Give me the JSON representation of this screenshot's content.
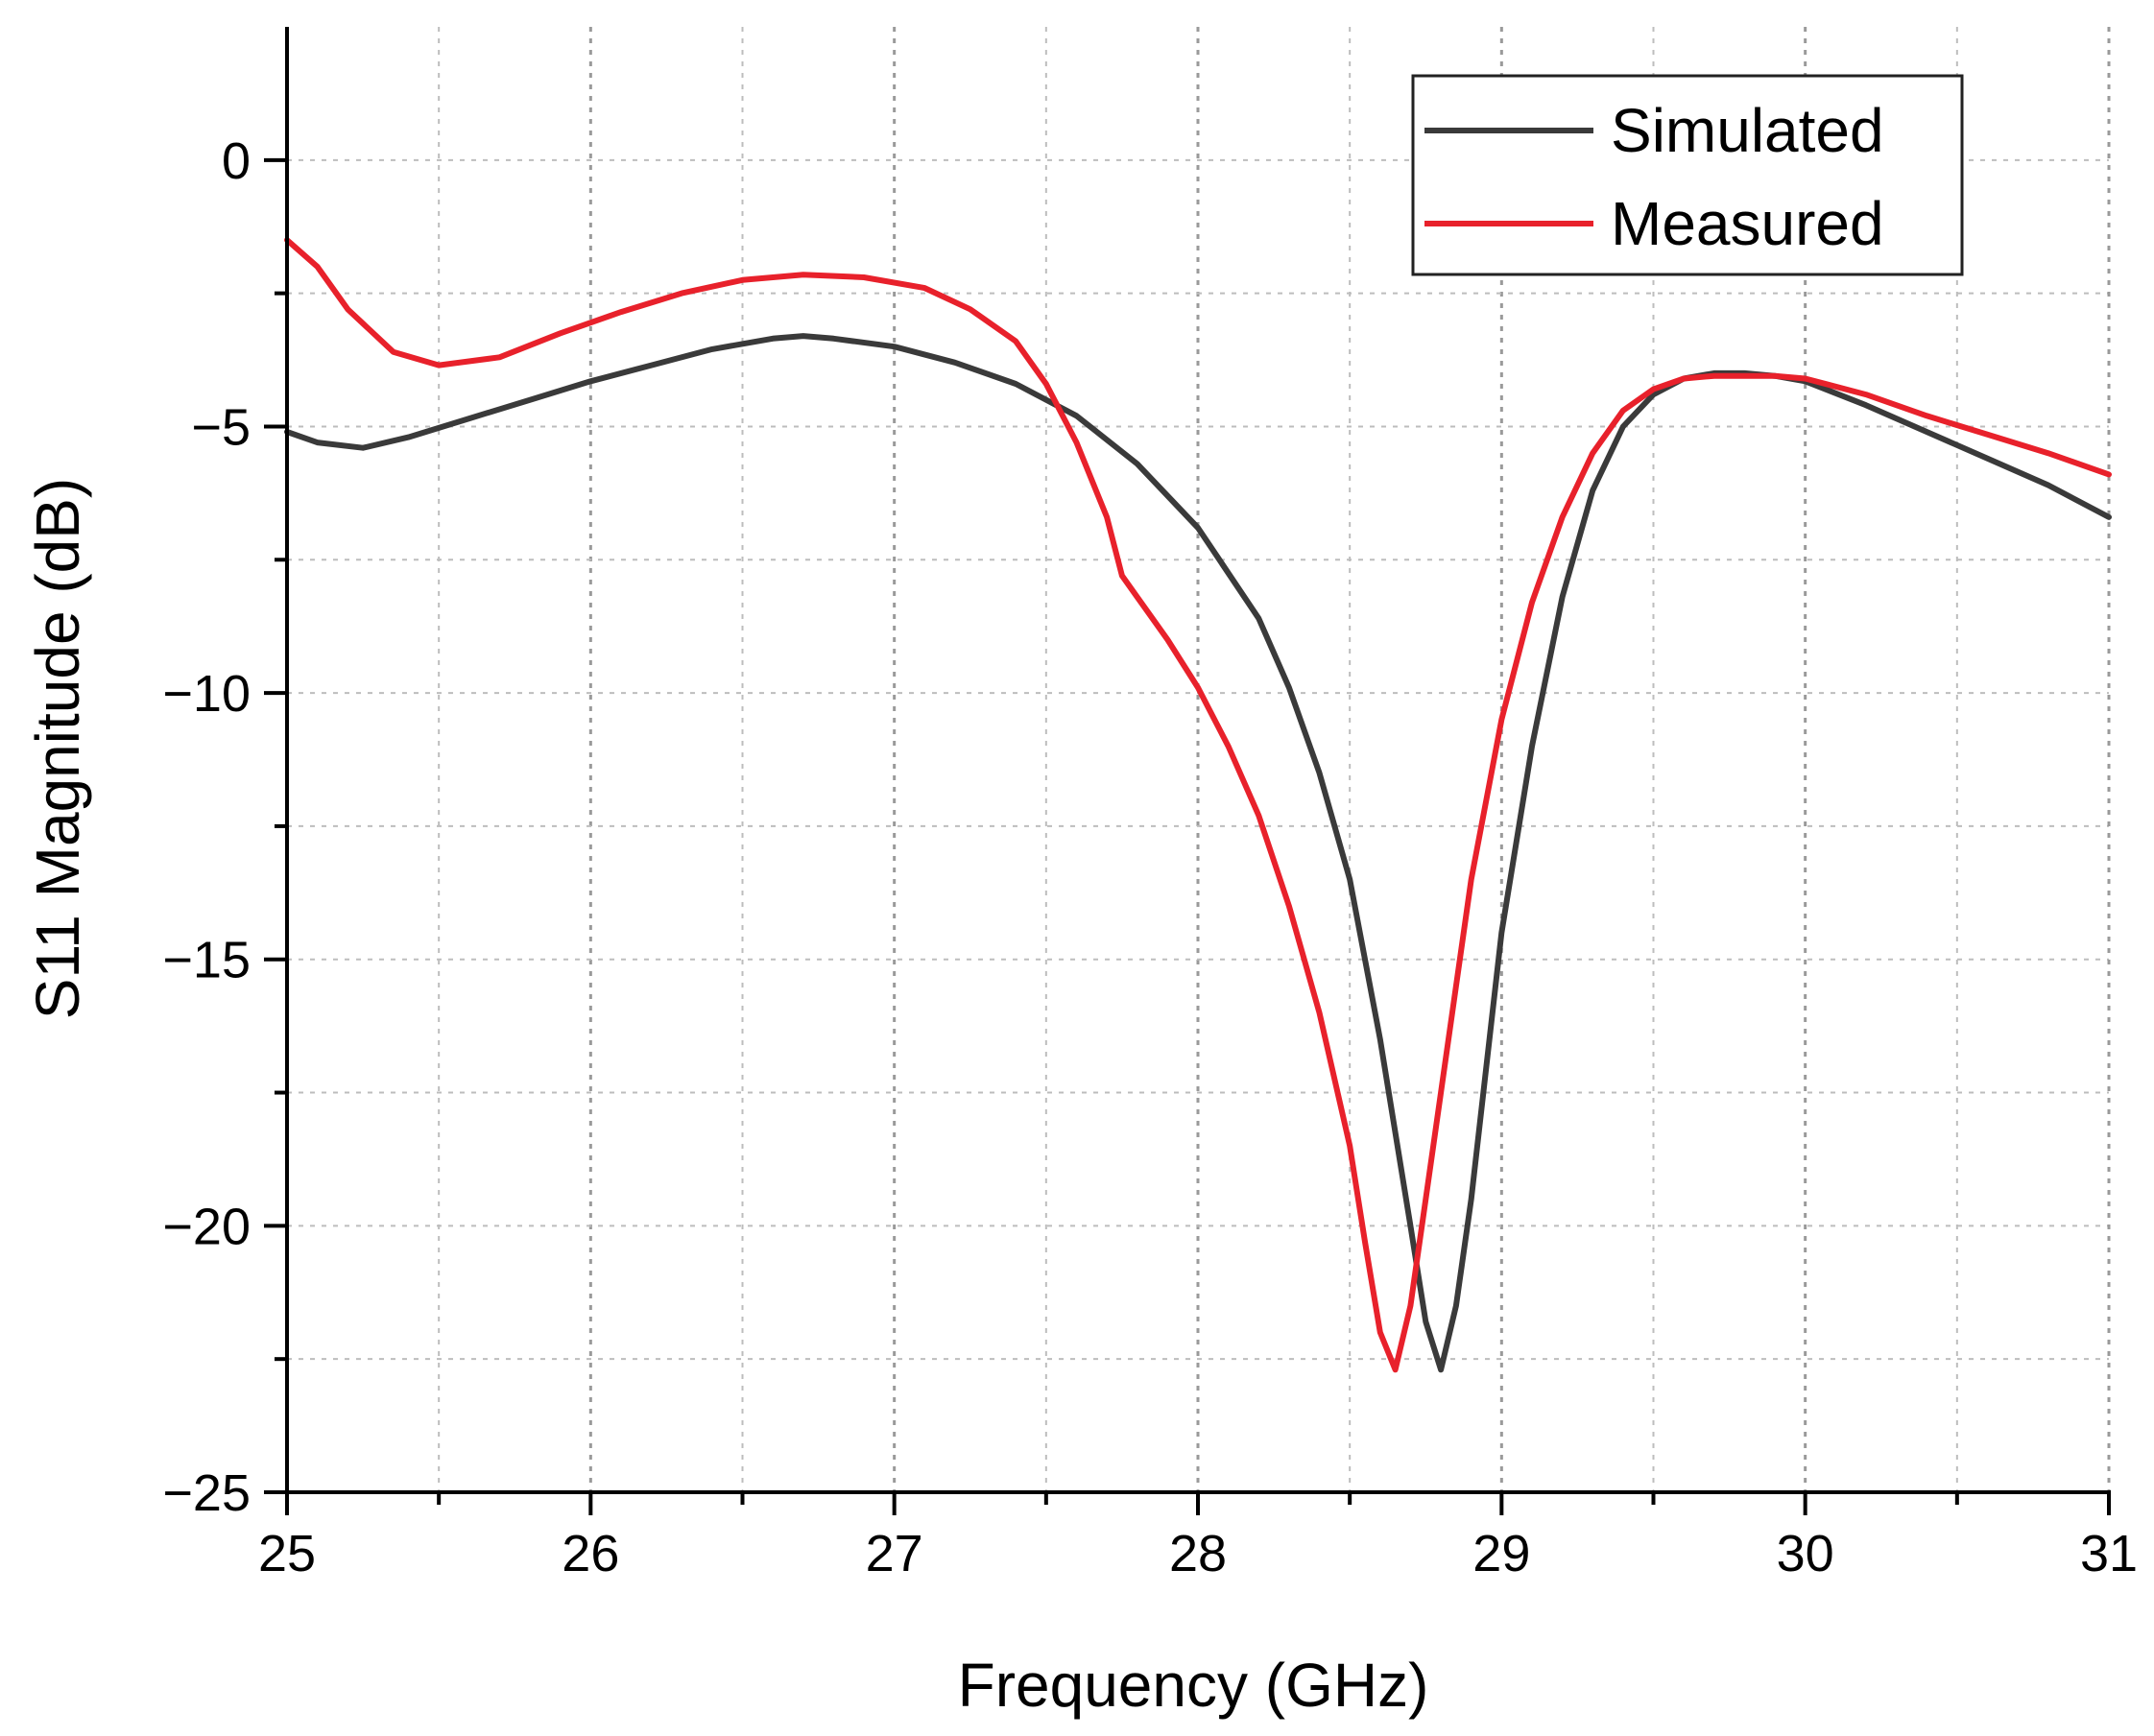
{
  "chart_data": {
    "type": "line",
    "title": "",
    "xlabel": "Frequency (GHz)",
    "ylabel": "S11 Magnitude (dB)",
    "xlim": [
      25,
      31
    ],
    "ylim": [
      -25,
      2.5
    ],
    "x_ticks": [
      25,
      26,
      27,
      28,
      29,
      30,
      31
    ],
    "x_tick_labels": [
      "25",
      "26",
      "27",
      "28",
      "29",
      "30",
      "31"
    ],
    "y_ticks": [
      0,
      -5,
      -10,
      -15,
      -20,
      -25
    ],
    "y_tick_labels": [
      "0",
      "−5",
      "−10",
      "−15",
      "−20",
      "−25"
    ],
    "grid": true,
    "legend_position": "top-right",
    "series": [
      {
        "name": "Simulated",
        "color": "#3a3a3a",
        "x": [
          25.0,
          25.1,
          25.25,
          25.4,
          25.6,
          25.8,
          26.0,
          26.2,
          26.4,
          26.6,
          26.7,
          26.8,
          27.0,
          27.2,
          27.4,
          27.6,
          27.8,
          28.0,
          28.2,
          28.3,
          28.4,
          28.5,
          28.6,
          28.7,
          28.75,
          28.8,
          28.85,
          28.9,
          28.95,
          29.0,
          29.1,
          29.2,
          29.3,
          29.4,
          29.5,
          29.6,
          29.7,
          29.8,
          29.9,
          30.0,
          30.2,
          30.4,
          30.6,
          30.8,
          31.0
        ],
        "values": [
          -5.1,
          -5.3,
          -5.4,
          -5.2,
          -4.85,
          -4.5,
          -4.15,
          -3.85,
          -3.55,
          -3.35,
          -3.3,
          -3.35,
          -3.5,
          -3.8,
          -4.2,
          -4.8,
          -5.7,
          -6.9,
          -8.6,
          -9.9,
          -11.5,
          -13.5,
          -16.5,
          -20.0,
          -21.8,
          -22.7,
          -21.5,
          -19.5,
          -17.0,
          -14.5,
          -11.0,
          -8.2,
          -6.2,
          -5.0,
          -4.4,
          -4.1,
          -4.0,
          -4.0,
          -4.05,
          -4.15,
          -4.6,
          -5.1,
          -5.6,
          -6.1,
          -6.7
        ]
      },
      {
        "name": "Measured",
        "color": "#e8212b",
        "x": [
          25.0,
          25.1,
          25.2,
          25.35,
          25.5,
          25.7,
          25.9,
          26.1,
          26.3,
          26.5,
          26.7,
          26.9,
          27.1,
          27.25,
          27.4,
          27.5,
          27.6,
          27.7,
          27.75,
          27.8,
          27.9,
          28.0,
          28.1,
          28.2,
          28.3,
          28.4,
          28.5,
          28.55,
          28.6,
          28.65,
          28.7,
          28.75,
          28.8,
          28.85,
          28.9,
          29.0,
          29.1,
          29.2,
          29.3,
          29.4,
          29.5,
          29.6,
          29.7,
          29.8,
          29.9,
          30.0,
          30.2,
          30.4,
          30.6,
          30.8,
          31.0
        ],
        "values": [
          -1.5,
          -2.0,
          -2.8,
          -3.6,
          -3.85,
          -3.7,
          -3.25,
          -2.85,
          -2.5,
          -2.25,
          -2.15,
          -2.2,
          -2.4,
          -2.8,
          -3.4,
          -4.2,
          -5.3,
          -6.7,
          -7.8,
          -8.2,
          -9.0,
          -9.9,
          -11.0,
          -12.3,
          -14.0,
          -16.0,
          -18.5,
          -20.3,
          -22.0,
          -22.7,
          -21.5,
          -19.5,
          -17.5,
          -15.5,
          -13.5,
          -10.5,
          -8.3,
          -6.7,
          -5.5,
          -4.7,
          -4.3,
          -4.1,
          -4.05,
          -4.05,
          -4.05,
          -4.1,
          -4.4,
          -4.8,
          -5.15,
          -5.5,
          -5.9
        ]
      }
    ]
  }
}
